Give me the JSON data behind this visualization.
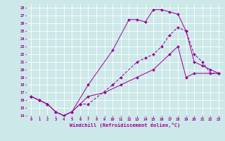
{
  "xlabel": "Windchill (Refroidissement éolien,°C)",
  "xlim": [
    -0.5,
    23.5
  ],
  "ylim": [
    14,
    28.5
  ],
  "xticks": [
    0,
    1,
    2,
    3,
    4,
    5,
    6,
    7,
    8,
    9,
    10,
    11,
    12,
    13,
    14,
    15,
    16,
    17,
    18,
    19,
    20,
    21,
    22,
    23
  ],
  "yticks": [
    14,
    15,
    16,
    17,
    18,
    19,
    20,
    21,
    22,
    23,
    24,
    25,
    26,
    27,
    28
  ],
  "bg_color": "#cce8e8",
  "line_color": "#990099",
  "grid_color": "#ffffff",
  "line1_x": [
    0,
    1,
    2,
    3,
    4,
    5,
    7,
    10,
    12,
    13,
    14,
    15,
    16,
    17,
    18,
    19,
    20,
    21,
    22,
    23
  ],
  "line1_y": [
    16.5,
    16.0,
    15.5,
    14.5,
    14.0,
    14.5,
    18.0,
    22.5,
    26.5,
    26.5,
    26.2,
    27.8,
    27.8,
    27.5,
    27.2,
    25.0,
    21.0,
    20.5,
    20.0,
    19.5
  ],
  "line2_x": [
    0,
    1,
    2,
    3,
    4,
    5,
    6,
    7,
    10,
    11,
    13,
    14,
    15,
    16,
    17,
    18,
    19,
    20,
    21,
    22,
    23
  ],
  "line2_y": [
    16.5,
    16.0,
    15.5,
    14.5,
    14.0,
    14.5,
    15.5,
    15.5,
    18.0,
    19.0,
    21.0,
    21.5,
    22.0,
    23.0,
    24.5,
    25.5,
    25.0,
    22.0,
    21.0,
    19.5,
    19.5
  ],
  "line3_x": [
    0,
    1,
    2,
    3,
    4,
    5,
    6,
    7,
    9,
    11,
    13,
    15,
    17,
    18,
    19,
    20,
    23
  ],
  "line3_y": [
    16.5,
    16.0,
    15.5,
    14.5,
    14.0,
    14.5,
    15.5,
    16.5,
    17.0,
    18.0,
    19.0,
    20.0,
    22.0,
    23.0,
    19.0,
    19.5,
    19.5
  ]
}
